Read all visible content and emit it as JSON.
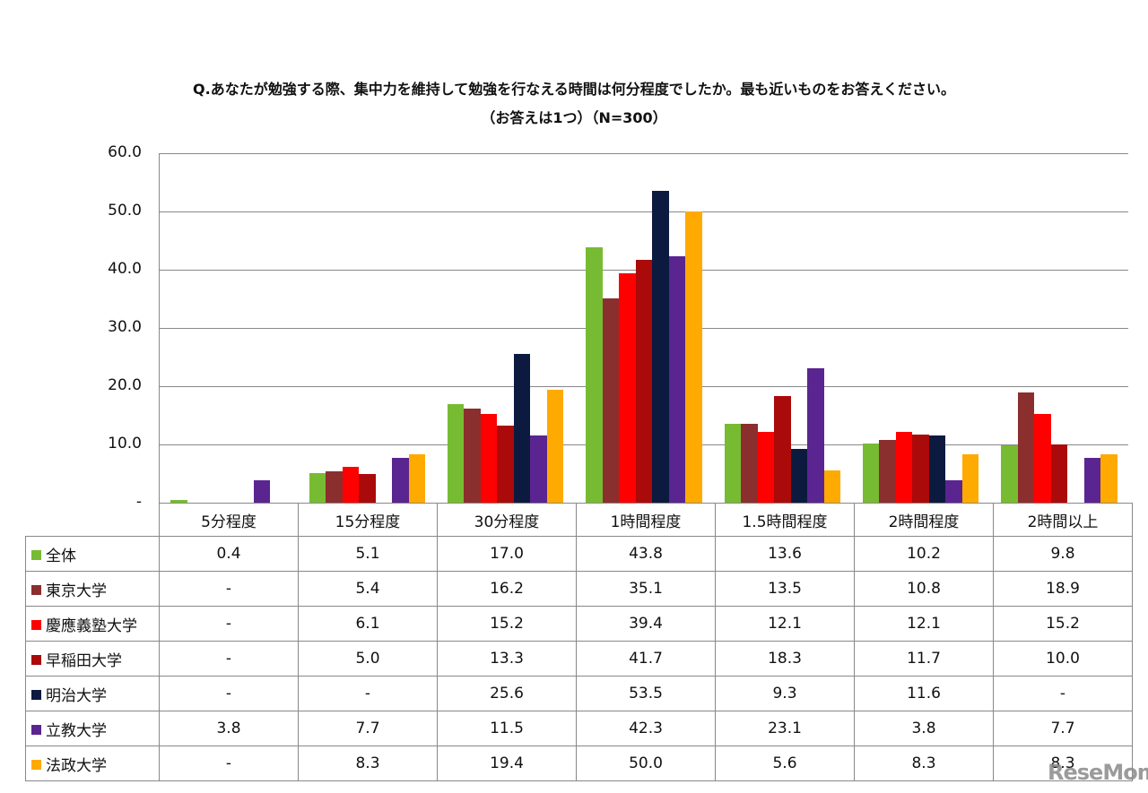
{
  "title": {
    "line1": "Q.あなたが勉強する際、集中力を維持して勉強を行なえる時間は何分程度でしたか。最も近いものをお答えください。",
    "line2": "（お答えは1つ）（N=300）"
  },
  "watermark": "ReseMom",
  "chart_data": {
    "type": "bar",
    "title": "Q.あなたが勉強する際、集中力を維持して勉強を行なえる時間は何分程度でしたか。最も近いものをお答えください。（お答えは1つ）（N=300）",
    "xlabel": "",
    "ylabel": "",
    "ylim": [
      0,
      60
    ],
    "yticks": [
      "-",
      "10.0",
      "20.0",
      "30.0",
      "40.0",
      "50.0",
      "60.0"
    ],
    "grid": true,
    "legend_position": "data-table-left",
    "categories": [
      "5分程度",
      "15分程度",
      "30分程度",
      "1時間程度",
      "1.5時間程度",
      "2時間程度",
      "2時間以上"
    ],
    "series": [
      {
        "name": "全体",
        "color": "#77bb33",
        "values": [
          0.4,
          5.1,
          17.0,
          43.8,
          13.6,
          10.2,
          9.8
        ],
        "labels": [
          "0.4",
          "5.1",
          "17.0",
          "43.8",
          "13.6",
          "10.2",
          "9.8"
        ]
      },
      {
        "name": "東京大学",
        "color": "#8b2e2e",
        "values": [
          null,
          5.4,
          16.2,
          35.1,
          13.5,
          10.8,
          18.9
        ],
        "labels": [
          "-",
          "5.4",
          "16.2",
          "35.1",
          "13.5",
          "10.8",
          "18.9"
        ]
      },
      {
        "name": "慶應義塾大学",
        "color": "#ff0000",
        "values": [
          null,
          6.1,
          15.2,
          39.4,
          12.1,
          12.1,
          15.2
        ],
        "labels": [
          "-",
          "6.1",
          "15.2",
          "39.4",
          "12.1",
          "12.1",
          "15.2"
        ]
      },
      {
        "name": "早稲田大学",
        "color": "#aa0a0a",
        "values": [
          null,
          5.0,
          13.3,
          41.7,
          18.3,
          11.7,
          10.0
        ],
        "labels": [
          "-",
          "5.0",
          "13.3",
          "41.7",
          "18.3",
          "11.7",
          "10.0"
        ]
      },
      {
        "name": "明治大学",
        "color": "#0d1a40",
        "values": [
          null,
          null,
          25.6,
          53.5,
          9.3,
          11.6,
          null
        ],
        "labels": [
          "-",
          "-",
          "25.6",
          "53.5",
          "9.3",
          "11.6",
          "-"
        ]
      },
      {
        "name": "立教大学",
        "color": "#5a2590",
        "values": [
          3.8,
          7.7,
          11.5,
          42.3,
          23.1,
          3.8,
          7.7
        ],
        "labels": [
          "3.8",
          "7.7",
          "11.5",
          "42.3",
          "23.1",
          "3.8",
          "7.7"
        ]
      },
      {
        "name": "法政大学",
        "color": "#ffaa00",
        "values": [
          null,
          8.3,
          19.4,
          50.0,
          5.6,
          8.3,
          8.3
        ],
        "labels": [
          "-",
          "8.3",
          "19.4",
          "50.0",
          "5.6",
          "8.3",
          "8.3"
        ]
      }
    ]
  }
}
